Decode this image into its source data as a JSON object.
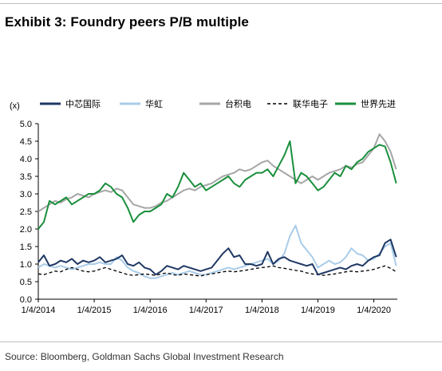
{
  "title": "Exhibit 3: Foundry peers P/B multiple",
  "source": "Source: Bloomberg, Goldman Sachs Global Investment Research",
  "chart_data": {
    "type": "line",
    "title": "Exhibit 3: Foundry peers P/B multiple",
    "ylabel": "(x)",
    "xlabel": "",
    "ylim": [
      0.0,
      5.0
    ],
    "yticks": [
      "0.0",
      "0.5",
      "1.0",
      "1.5",
      "2.0",
      "2.5",
      "3.0",
      "3.5",
      "4.0",
      "4.5",
      "5.0"
    ],
    "xticks": [
      "1/4/2014",
      "1/4/2015",
      "1/4/2016",
      "1/4/2017",
      "1/4/2018",
      "1/4/2019",
      "1/4/2020"
    ],
    "xlim": [
      2014.0,
      2020.42
    ],
    "legend_position": "top",
    "grid": false,
    "series": [
      {
        "name": "中芯国际",
        "color": "#1f3864",
        "dash": "solid",
        "x": [
          2014.0,
          2014.1,
          2014.2,
          2014.3,
          2014.4,
          2014.5,
          2014.6,
          2014.7,
          2014.8,
          2014.9,
          2015.0,
          2015.1,
          2015.2,
          2015.3,
          2015.4,
          2015.5,
          2015.6,
          2015.7,
          2015.8,
          2015.9,
          2016.0,
          2016.1,
          2016.2,
          2016.3,
          2016.4,
          2016.5,
          2016.6,
          2016.7,
          2016.8,
          2016.9,
          2017.0,
          2017.1,
          2017.2,
          2017.3,
          2017.4,
          2017.5,
          2017.6,
          2017.7,
          2017.8,
          2017.9,
          2018.0,
          2018.1,
          2018.2,
          2018.3,
          2018.4,
          2018.5,
          2018.6,
          2018.7,
          2018.8,
          2018.9,
          2019.0,
          2019.1,
          2019.2,
          2019.3,
          2019.4,
          2019.5,
          2019.6,
          2019.7,
          2019.8,
          2019.9,
          2020.0,
          2020.1,
          2020.2,
          2020.3,
          2020.4
        ],
        "values": [
          1.05,
          1.25,
          0.95,
          1.0,
          1.1,
          1.05,
          1.15,
          1.0,
          1.1,
          1.05,
          1.1,
          1.2,
          1.05,
          1.1,
          1.15,
          1.25,
          1.0,
          0.95,
          1.05,
          0.9,
          0.85,
          0.7,
          0.8,
          0.95,
          0.9,
          0.85,
          0.95,
          0.9,
          0.85,
          0.8,
          0.85,
          0.9,
          1.1,
          1.3,
          1.45,
          1.2,
          1.25,
          1.0,
          1.0,
          0.95,
          1.0,
          1.35,
          1.0,
          1.15,
          1.2,
          1.1,
          1.05,
          1.0,
          0.95,
          1.0,
          0.7,
          0.75,
          0.8,
          0.85,
          0.9,
          0.85,
          0.95,
          1.0,
          0.95,
          1.1,
          1.2,
          1.25,
          1.6,
          1.7,
          1.2
        ]
      },
      {
        "name": "华虹",
        "color": "#a9cce9",
        "dash": "solid",
        "x": [
          2014.0,
          2014.1,
          2014.2,
          2014.3,
          2014.4,
          2014.5,
          2014.6,
          2014.7,
          2014.8,
          2014.9,
          2015.0,
          2015.1,
          2015.2,
          2015.3,
          2015.4,
          2015.5,
          2015.6,
          2015.7,
          2015.8,
          2015.9,
          2016.0,
          2016.1,
          2016.2,
          2016.3,
          2016.4,
          2016.5,
          2016.6,
          2016.7,
          2016.8,
          2016.9,
          2017.0,
          2017.1,
          2017.2,
          2017.3,
          2017.4,
          2017.5,
          2017.6,
          2017.7,
          2017.8,
          2017.9,
          2018.0,
          2018.1,
          2018.2,
          2018.3,
          2018.4,
          2018.5,
          2018.6,
          2018.7,
          2018.8,
          2018.9,
          2019.0,
          2019.1,
          2019.2,
          2019.3,
          2019.4,
          2019.5,
          2019.6,
          2019.7,
          2019.8,
          2019.9,
          2020.0,
          2020.1,
          2020.2,
          2020.3,
          2020.4
        ],
        "values": [
          0.9,
          1.0,
          0.95,
          0.9,
          0.95,
          0.9,
          0.85,
          0.9,
          0.95,
          1.0,
          1.0,
          1.05,
          1.0,
          1.0,
          1.2,
          1.1,
          0.9,
          0.8,
          0.75,
          0.65,
          0.6,
          0.6,
          0.65,
          0.7,
          0.75,
          0.7,
          0.75,
          0.8,
          0.75,
          0.7,
          0.7,
          0.75,
          0.8,
          0.85,
          0.9,
          0.85,
          0.9,
          0.95,
          1.0,
          1.05,
          1.1,
          1.15,
          1.0,
          1.1,
          1.3,
          1.8,
          2.1,
          1.6,
          1.4,
          1.2,
          0.9,
          1.0,
          1.1,
          1.0,
          1.05,
          1.2,
          1.45,
          1.3,
          1.25,
          1.1,
          1.15,
          1.3,
          1.5,
          1.6,
          0.95
        ]
      },
      {
        "name": "台积电",
        "color": "#a6a6a6",
        "dash": "solid",
        "x": [
          2014.0,
          2014.1,
          2014.2,
          2014.3,
          2014.4,
          2014.5,
          2014.6,
          2014.7,
          2014.8,
          2014.9,
          2015.0,
          2015.1,
          2015.2,
          2015.3,
          2015.4,
          2015.5,
          2015.6,
          2015.7,
          2015.8,
          2015.9,
          2016.0,
          2016.1,
          2016.2,
          2016.3,
          2016.4,
          2016.5,
          2016.6,
          2016.7,
          2016.8,
          2016.9,
          2017.0,
          2017.1,
          2017.2,
          2017.3,
          2017.4,
          2017.5,
          2017.6,
          2017.7,
          2017.8,
          2017.9,
          2018.0,
          2018.1,
          2018.2,
          2018.3,
          2018.4,
          2018.5,
          2018.6,
          2018.7,
          2018.8,
          2018.9,
          2019.0,
          2019.1,
          2019.2,
          2019.3,
          2019.4,
          2019.5,
          2019.6,
          2019.7,
          2019.8,
          2019.9,
          2020.0,
          2020.1,
          2020.2,
          2020.3,
          2020.4
        ],
        "values": [
          2.5,
          2.6,
          2.7,
          2.8,
          2.75,
          2.85,
          2.9,
          3.0,
          2.95,
          2.9,
          3.0,
          3.05,
          3.1,
          3.05,
          3.15,
          3.1,
          2.9,
          2.7,
          2.65,
          2.6,
          2.6,
          2.65,
          2.75,
          2.8,
          2.9,
          3.0,
          3.1,
          3.15,
          3.1,
          3.2,
          3.25,
          3.3,
          3.4,
          3.5,
          3.55,
          3.6,
          3.7,
          3.65,
          3.7,
          3.8,
          3.9,
          3.95,
          3.8,
          3.7,
          3.6,
          3.5,
          3.4,
          3.3,
          3.4,
          3.5,
          3.4,
          3.5,
          3.6,
          3.65,
          3.7,
          3.8,
          3.75,
          3.85,
          3.9,
          4.1,
          4.3,
          4.7,
          4.5,
          4.2,
          3.7
        ]
      },
      {
        "name": "联华电子",
        "color": "#000000",
        "dash": "dashed",
        "x": [
          2014.0,
          2014.1,
          2014.2,
          2014.3,
          2014.4,
          2014.5,
          2014.6,
          2014.7,
          2014.8,
          2014.9,
          2015.0,
          2015.1,
          2015.2,
          2015.3,
          2015.4,
          2015.5,
          2015.6,
          2015.7,
          2015.8,
          2015.9,
          2016.0,
          2016.1,
          2016.2,
          2016.3,
          2016.4,
          2016.5,
          2016.6,
          2016.7,
          2016.8,
          2016.9,
          2017.0,
          2017.1,
          2017.2,
          2017.3,
          2017.4,
          2017.5,
          2017.6,
          2017.7,
          2017.8,
          2017.9,
          2018.0,
          2018.1,
          2018.2,
          2018.3,
          2018.4,
          2018.5,
          2018.6,
          2018.7,
          2018.8,
          2018.9,
          2019.0,
          2019.1,
          2019.2,
          2019.3,
          2019.4,
          2019.5,
          2019.6,
          2019.7,
          2019.8,
          2019.9,
          2020.0,
          2020.1,
          2020.2,
          2020.3,
          2020.4
        ],
        "values": [
          0.72,
          0.7,
          0.75,
          0.8,
          0.78,
          0.85,
          0.9,
          0.85,
          0.8,
          0.78,
          0.8,
          0.85,
          0.9,
          0.85,
          0.8,
          0.75,
          0.7,
          0.68,
          0.7,
          0.72,
          0.7,
          0.68,
          0.72,
          0.75,
          0.7,
          0.68,
          0.72,
          0.7,
          0.68,
          0.66,
          0.7,
          0.72,
          0.75,
          0.78,
          0.8,
          0.78,
          0.8,
          0.82,
          0.85,
          0.88,
          0.9,
          0.92,
          0.95,
          0.9,
          0.88,
          0.85,
          0.82,
          0.8,
          0.75,
          0.72,
          0.7,
          0.68,
          0.7,
          0.72,
          0.75,
          0.78,
          0.8,
          0.78,
          0.8,
          0.82,
          0.85,
          0.9,
          0.95,
          0.88,
          0.78
        ]
      },
      {
        "name": "世界先进",
        "color": "#1a8f3c",
        "dash": "solid",
        "x": [
          2014.0,
          2014.1,
          2014.2,
          2014.3,
          2014.4,
          2014.5,
          2014.6,
          2014.7,
          2014.8,
          2014.9,
          2015.0,
          2015.1,
          2015.2,
          2015.3,
          2015.4,
          2015.5,
          2015.6,
          2015.7,
          2015.8,
          2015.9,
          2016.0,
          2016.1,
          2016.2,
          2016.3,
          2016.4,
          2016.5,
          2016.6,
          2016.7,
          2016.8,
          2016.9,
          2017.0,
          2017.1,
          2017.2,
          2017.3,
          2017.4,
          2017.5,
          2017.6,
          2017.7,
          2017.8,
          2017.9,
          2018.0,
          2018.1,
          2018.2,
          2018.3,
          2018.4,
          2018.5,
          2018.6,
          2018.7,
          2018.8,
          2018.9,
          2019.0,
          2019.1,
          2019.2,
          2019.3,
          2019.4,
          2019.5,
          2019.6,
          2019.7,
          2019.8,
          2019.9,
          2020.0,
          2020.1,
          2020.2,
          2020.3,
          2020.4
        ],
        "values": [
          2.0,
          2.2,
          2.8,
          2.7,
          2.8,
          2.9,
          2.7,
          2.8,
          2.9,
          3.0,
          3.0,
          3.1,
          3.3,
          3.2,
          3.0,
          2.9,
          2.6,
          2.2,
          2.4,
          2.5,
          2.5,
          2.6,
          2.7,
          3.0,
          2.9,
          3.2,
          3.6,
          3.4,
          3.2,
          3.3,
          3.1,
          3.2,
          3.3,
          3.4,
          3.5,
          3.3,
          3.2,
          3.4,
          3.5,
          3.6,
          3.6,
          3.7,
          3.5,
          3.8,
          4.1,
          4.5,
          3.3,
          3.6,
          3.5,
          3.3,
          3.1,
          3.2,
          3.4,
          3.6,
          3.5,
          3.8,
          3.7,
          3.9,
          4.0,
          4.2,
          4.3,
          4.4,
          4.35,
          3.9,
          3.3
        ]
      }
    ]
  }
}
